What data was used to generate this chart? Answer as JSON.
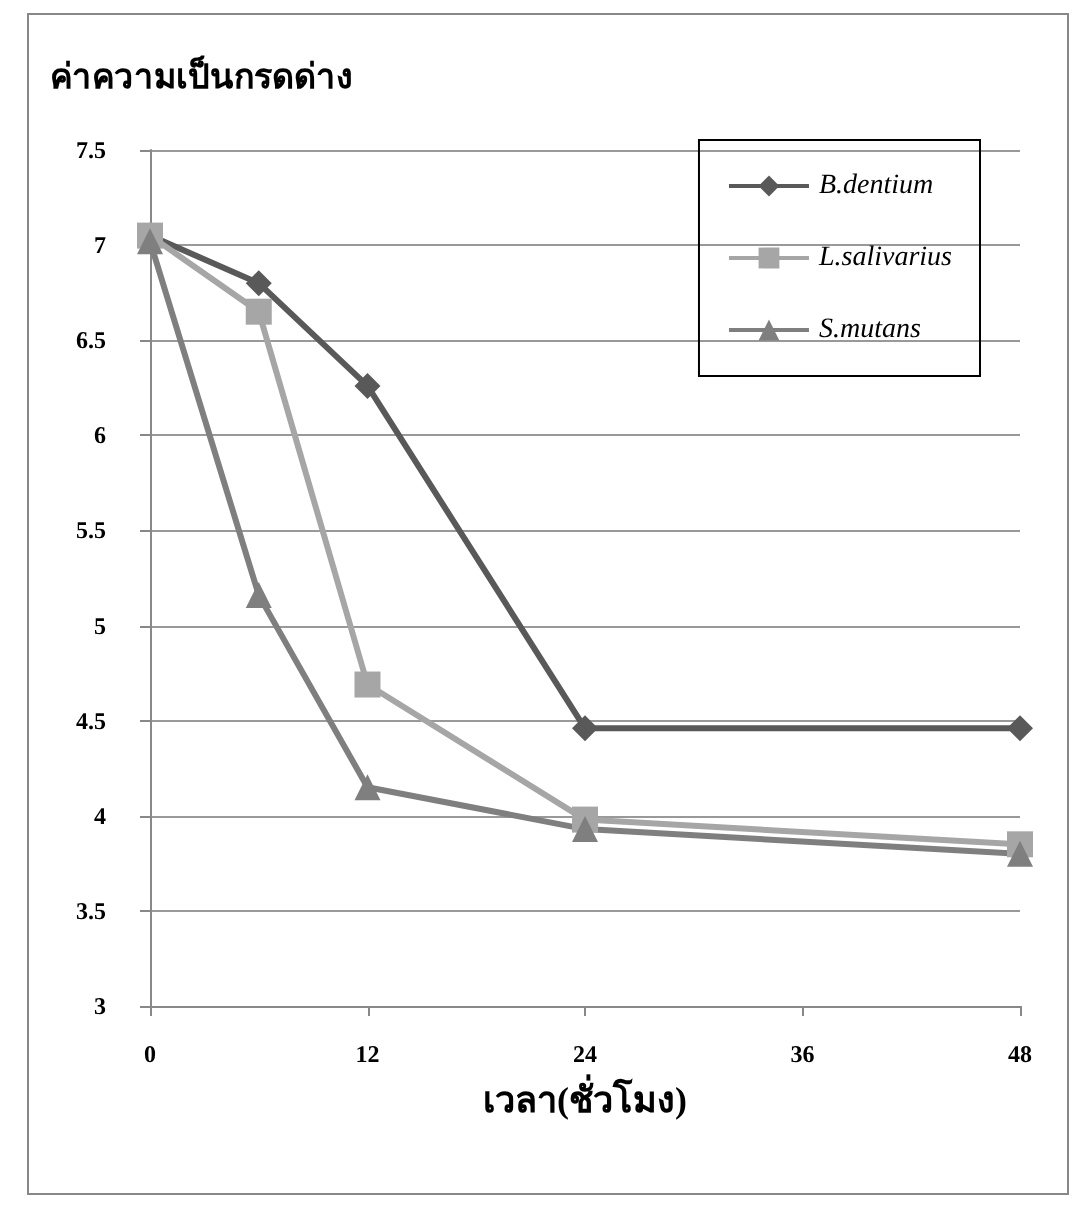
{
  "chart_data": {
    "type": "line",
    "ylabel": "ค่าความเป็นกรดด่าง",
    "xlabel": "เวลา(ชั่วโมง)",
    "xlim": [
      0,
      48
    ],
    "xticks": [
      0,
      12,
      24,
      36,
      48
    ],
    "ylim": [
      3,
      7.5
    ],
    "yticks": [
      3,
      3.5,
      4,
      4.5,
      5,
      5.5,
      6,
      6.5,
      7,
      7.5
    ],
    "grid": "y",
    "legend": "top right",
    "line_style": "solid",
    "series": [
      {
        "name": "B.dentium",
        "color": "#595959",
        "marker": "diamond",
        "x": [
          0,
          6,
          12,
          24,
          48
        ],
        "values": [
          7.05,
          6.8,
          6.26,
          4.46,
          4.46
        ]
      },
      {
        "name": "L.salivarius",
        "color": "#a6a6a6",
        "marker": "square",
        "x": [
          0,
          6,
          12,
          24,
          48
        ],
        "values": [
          7.05,
          6.65,
          4.69,
          3.98,
          3.85
        ]
      },
      {
        "name": "S.mutans",
        "color": "#7f7f7f",
        "marker": "triangle",
        "x": [
          0,
          6,
          12,
          24,
          48
        ],
        "values": [
          7.02,
          5.16,
          4.15,
          3.93,
          3.8
        ]
      }
    ]
  }
}
